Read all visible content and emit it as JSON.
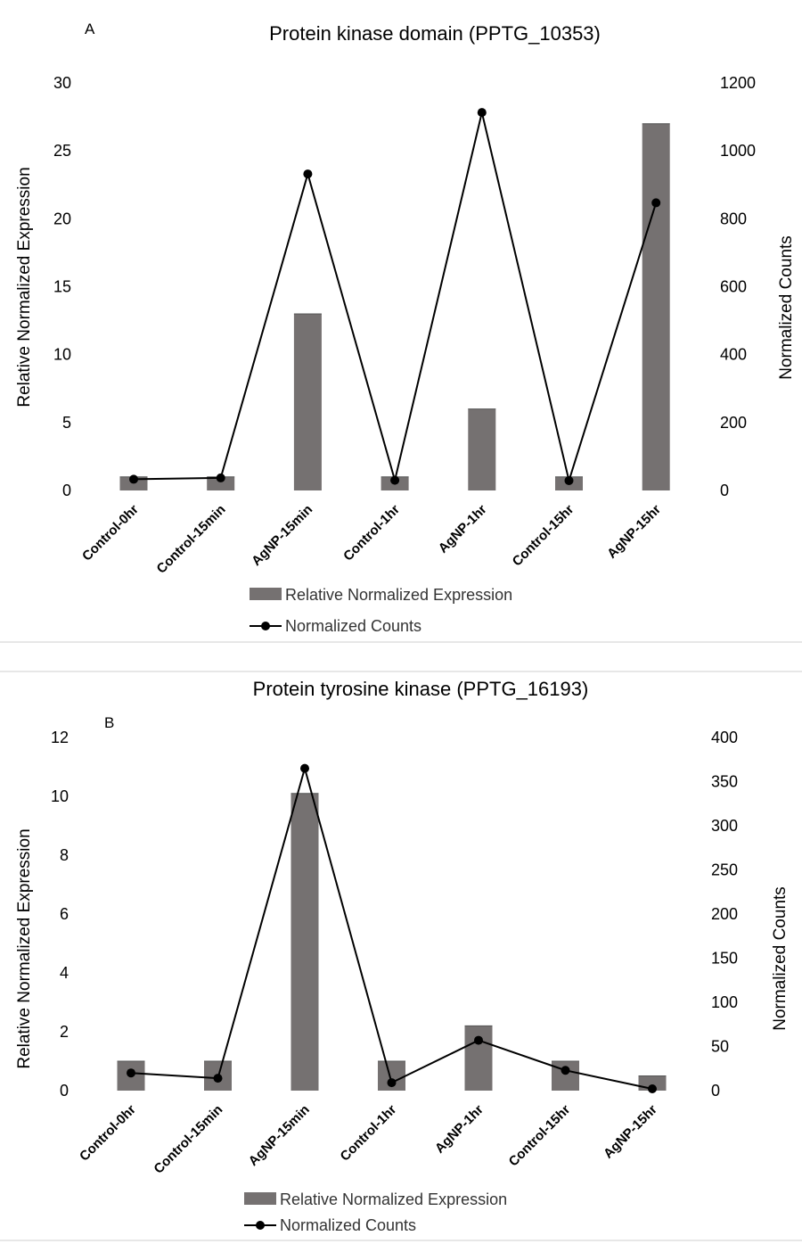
{
  "chart_data": [
    {
      "type": "bar+line",
      "panel_label": "A",
      "title": "Protein kinase domain (PPTG_10353)",
      "categories": [
        "Control-0hr",
        "Control-15min",
        "AgNP-15min",
        "Control-1hr",
        "AgNP-1hr",
        "Control-15hr",
        "AgNP-15hr"
      ],
      "series": [
        {
          "name": "Relative Normalized Expression",
          "kind": "bar",
          "axis": "left",
          "values": [
            1,
            1,
            13,
            1,
            6,
            1,
            27
          ]
        },
        {
          "name": "Normalized Counts",
          "kind": "line",
          "axis": "right",
          "values": [
            33,
            37,
            932,
            30,
            1113,
            29,
            847
          ]
        }
      ],
      "ylabel_left": "Relative Normalized Expression",
      "ylabel_right": "Normalized Counts",
      "ylim_left": [
        0,
        30
      ],
      "ylim_right": [
        0,
        1200
      ],
      "yticks_left": [
        "0",
        "5",
        "10",
        "15",
        "20",
        "25",
        "30"
      ],
      "yticks_right": [
        "0",
        "200",
        "400",
        "600",
        "800",
        "1000",
        "1200"
      ],
      "grid": false,
      "legend_position": "bottom",
      "colors": {
        "bar": "#757171",
        "line": "#000000"
      }
    },
    {
      "type": "bar+line",
      "panel_label": "B",
      "title": "Protein tyrosine kinase  (PPTG_16193)",
      "categories": [
        "Control-0hr",
        "Control-15min",
        "AgNP-15min",
        "Control-1hr",
        "AgNP-1hr",
        "Control-15hr",
        "AgNP-15hr"
      ],
      "series": [
        {
          "name": "Relative Normalized Expression",
          "kind": "bar",
          "axis": "left",
          "values": [
            1,
            1,
            10.1,
            1,
            2.2,
            1,
            0.5
          ]
        },
        {
          "name": "Normalized Counts",
          "kind": "line",
          "axis": "right",
          "values": [
            20,
            14,
            365,
            9,
            57,
            23,
            2
          ]
        }
      ],
      "ylabel_left": "Relative Normalized Expression",
      "ylabel_right": "Normalized Counts",
      "ylim_left": [
        0,
        12
      ],
      "ylim_right": [
        0,
        400
      ],
      "yticks_left": [
        "0",
        "2",
        "4",
        "6",
        "8",
        "10",
        "12"
      ],
      "yticks_right": [
        "0",
        "50",
        "100",
        "150",
        "200",
        "250",
        "300",
        "350",
        "400"
      ],
      "grid": false,
      "legend_position": "bottom",
      "colors": {
        "bar": "#757171",
        "line": "#000000"
      }
    }
  ]
}
